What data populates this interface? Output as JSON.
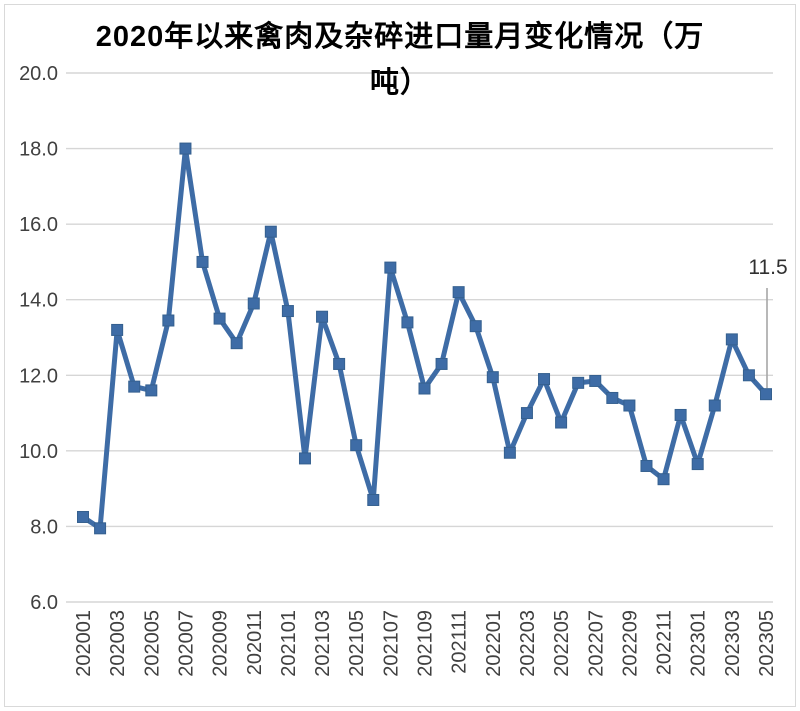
{
  "chart_data": {
    "type": "line",
    "title": "2020年以来禽肉及杂碎进口量月变化情况（万吨）",
    "title_lines": [
      "2020年以来禽肉及杂碎进口量月变化情况（万",
      "吨）"
    ],
    "x": [
      "202001",
      "202002",
      "202003",
      "202004",
      "202005",
      "202006",
      "202007",
      "202008",
      "202009",
      "202010",
      "202011",
      "202012",
      "202101",
      "202102",
      "202103",
      "202104",
      "202105",
      "202106",
      "202107",
      "202108",
      "202109",
      "202110",
      "202111",
      "202112",
      "202201",
      "202202",
      "202203",
      "202204",
      "202205",
      "202206",
      "202207",
      "202208",
      "202209",
      "202210",
      "202211",
      "202212",
      "202301",
      "202302",
      "202303",
      "202304",
      "202305"
    ],
    "values": [
      8.25,
      7.95,
      13.2,
      11.7,
      11.6,
      13.45,
      18.0,
      15.0,
      13.5,
      12.85,
      13.9,
      15.8,
      13.7,
      9.8,
      13.55,
      12.3,
      10.15,
      8.7,
      14.85,
      13.4,
      11.65,
      12.3,
      14.2,
      13.3,
      11.95,
      9.95,
      11.0,
      11.9,
      10.75,
      11.8,
      11.85,
      11.4,
      11.2,
      9.6,
      9.25,
      10.95,
      9.65,
      11.2,
      12.95,
      12.0,
      11.5
    ],
    "xlabel": "",
    "ylabel": "",
    "ylim": [
      6.0,
      20.0
    ],
    "ytick_interval": 2.0,
    "ytick_labels": [
      "20.0",
      "18.0",
      "16.0",
      "14.0",
      "12.0",
      "10.0",
      "8.0",
      "6.0"
    ],
    "xtick_labels": [
      "202001",
      "202003",
      "202005",
      "202007",
      "202009",
      "202011",
      "202101",
      "202103",
      "202105",
      "202107",
      "202109",
      "202111",
      "202201",
      "202203",
      "202205",
      "202207",
      "202209",
      "202211",
      "202301",
      "202303",
      "202305"
    ],
    "xtick_every": 2,
    "grid": true,
    "legend": false,
    "annotation": {
      "text": "11.5",
      "x": "202305",
      "value": 11.5
    },
    "colors": {
      "line": "#3e6ca6",
      "marker_fill": "#3e6ca6",
      "marker_border": "#35608f",
      "gridline": "#d6d6d6",
      "axis_text": "#404040",
      "title_text": "#000000",
      "annotation_text": "#303030",
      "annotation_leader": "#a6a6a6",
      "background": "#ffffff",
      "frame_border": "#d9d9d9"
    }
  }
}
